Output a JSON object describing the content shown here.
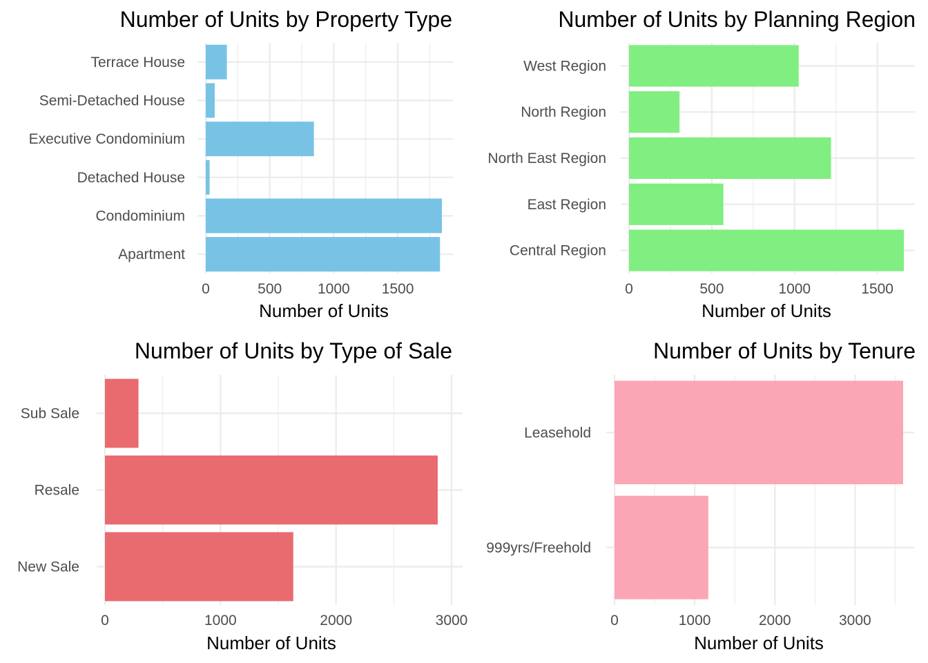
{
  "chart_data": [
    {
      "type": "bar",
      "orientation": "horizontal",
      "title": "Number of Units by Property Type",
      "xlabel": "Number of Units",
      "ylabel": "",
      "categories": [
        "Apartment",
        "Condominium",
        "Detached House",
        "Executive Condominium",
        "Semi-Detached House",
        "Terrace House"
      ],
      "values": [
        1830,
        1845,
        30,
        845,
        70,
        165
      ],
      "xlim": [
        0,
        1845
      ],
      "ticks": [
        0,
        500,
        1000,
        1500
      ],
      "tick_labels": [
        "0",
        "500",
        "1000",
        "1500"
      ],
      "color": "#78C3E5",
      "grid": true,
      "legend": "none"
    },
    {
      "type": "bar",
      "orientation": "horizontal",
      "title": "Number of Units by Planning Region",
      "xlabel": "Number of Units",
      "ylabel": "",
      "categories": [
        "Central Region",
        "East Region",
        "North East Region",
        "North Region",
        "West Region"
      ],
      "values": [
        1660,
        570,
        1220,
        305,
        1025
      ],
      "xlim": [
        0,
        1660
      ],
      "ticks": [
        0,
        500,
        1000,
        1500
      ],
      "tick_labels": [
        "0",
        "500",
        "1000",
        "1500"
      ],
      "color": "#80EE80",
      "grid": true,
      "legend": "none"
    },
    {
      "type": "bar",
      "orientation": "horizontal",
      "title": "Number of Units by Type of Sale",
      "xlabel": "Number of Units",
      "ylabel": "",
      "categories": [
        "New Sale",
        "Resale",
        "Sub Sale"
      ],
      "values": [
        1630,
        2880,
        290
      ],
      "xlim": [
        0,
        3000
      ],
      "ticks": [
        0,
        1000,
        2000,
        3000
      ],
      "tick_labels": [
        "0",
        "1000",
        "2000",
        "3000"
      ],
      "color": "#E96A6F",
      "grid": true,
      "legend": "none"
    },
    {
      "type": "bar",
      "orientation": "horizontal",
      "title": "Number of Units by Tenure",
      "xlabel": "Number of Units",
      "ylabel": "",
      "categories": [
        "999yrs/Freehold",
        "Leasehold"
      ],
      "values": [
        1170,
        3600
      ],
      "xlim": [
        0,
        3600
      ],
      "ticks": [
        0,
        1000,
        2000,
        3000
      ],
      "tick_labels": [
        "0",
        "1000",
        "2000",
        "3000"
      ],
      "color": "#FBA6B5",
      "grid": true,
      "legend": "none"
    }
  ]
}
